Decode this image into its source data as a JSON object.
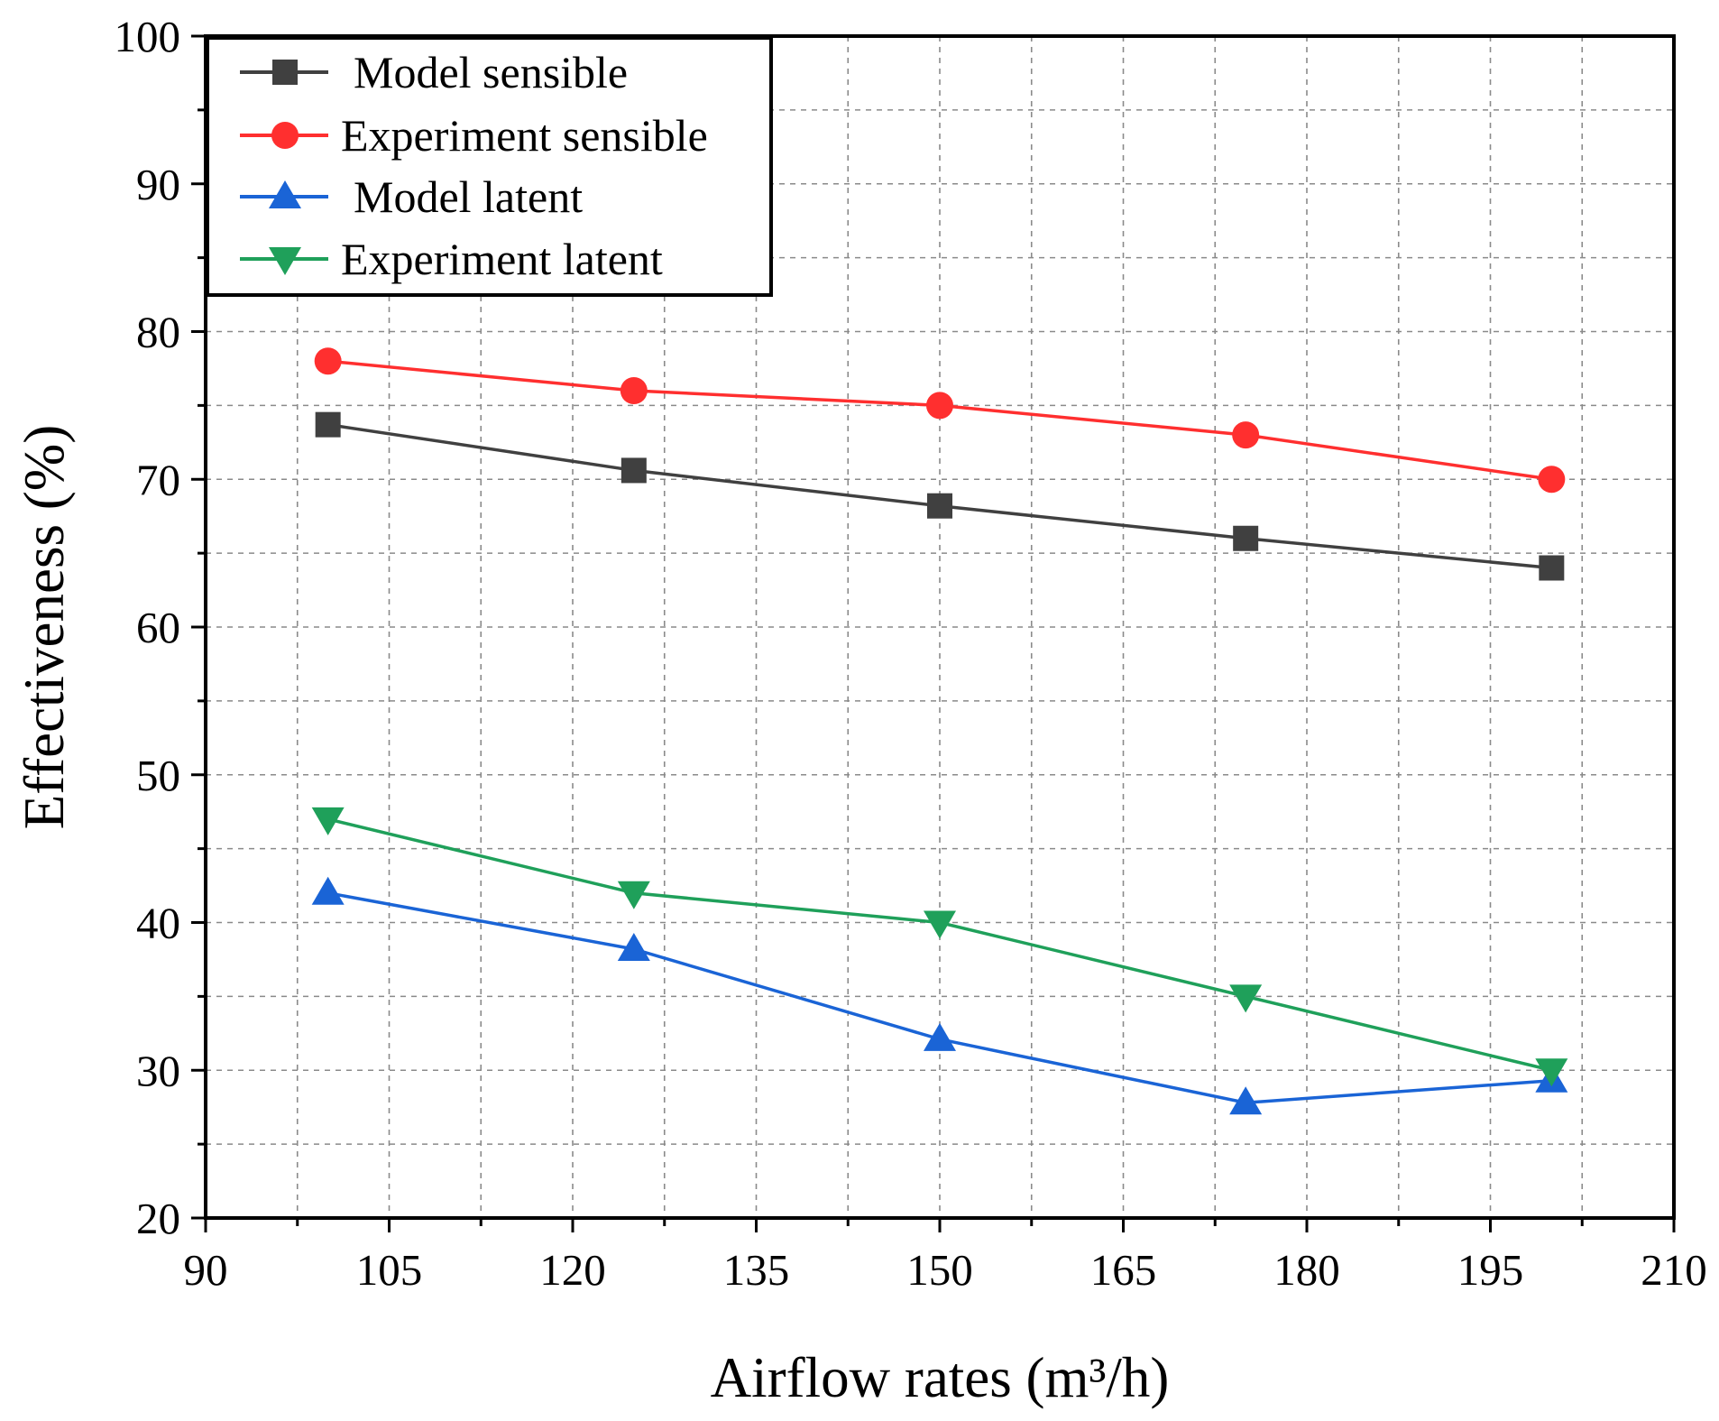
{
  "chart_data": {
    "type": "line",
    "title": "",
    "xlabel": "Airflow rates (m³/h)",
    "ylabel": "Effectiveness (%)",
    "xlim": [
      90,
      210
    ],
    "ylim": [
      20,
      100
    ],
    "x_ticks": [
      "90",
      "105",
      "120",
      "135",
      "150",
      "165",
      "180",
      "195",
      "210"
    ],
    "y_ticks": [
      "20",
      "30",
      "40",
      "50",
      "60",
      "70",
      "80",
      "90",
      "100"
    ],
    "grid": true,
    "legend_position": "top-left",
    "x": [
      100,
      125,
      150,
      175,
      200
    ],
    "series": [
      {
        "name": "Model sensible",
        "marker": "square",
        "color": "#404040",
        "values": [
          73.7,
          70.6,
          68.2,
          66.0,
          64.0
        ]
      },
      {
        "name": "Experiment sensible",
        "marker": "circle",
        "color": "#ff2f2f",
        "values": [
          78.0,
          76.0,
          75.0,
          73.0,
          70.0
        ]
      },
      {
        "name": "Model latent",
        "marker": "triangle-up",
        "color": "#1a64d6",
        "values": [
          42.0,
          38.2,
          32.1,
          27.8,
          29.3
        ]
      },
      {
        "name": "Experiment latent",
        "marker": "triangle-down",
        "color": "#1fa05a",
        "values": [
          47.0,
          42.0,
          40.0,
          35.0,
          30.0
        ]
      }
    ]
  }
}
